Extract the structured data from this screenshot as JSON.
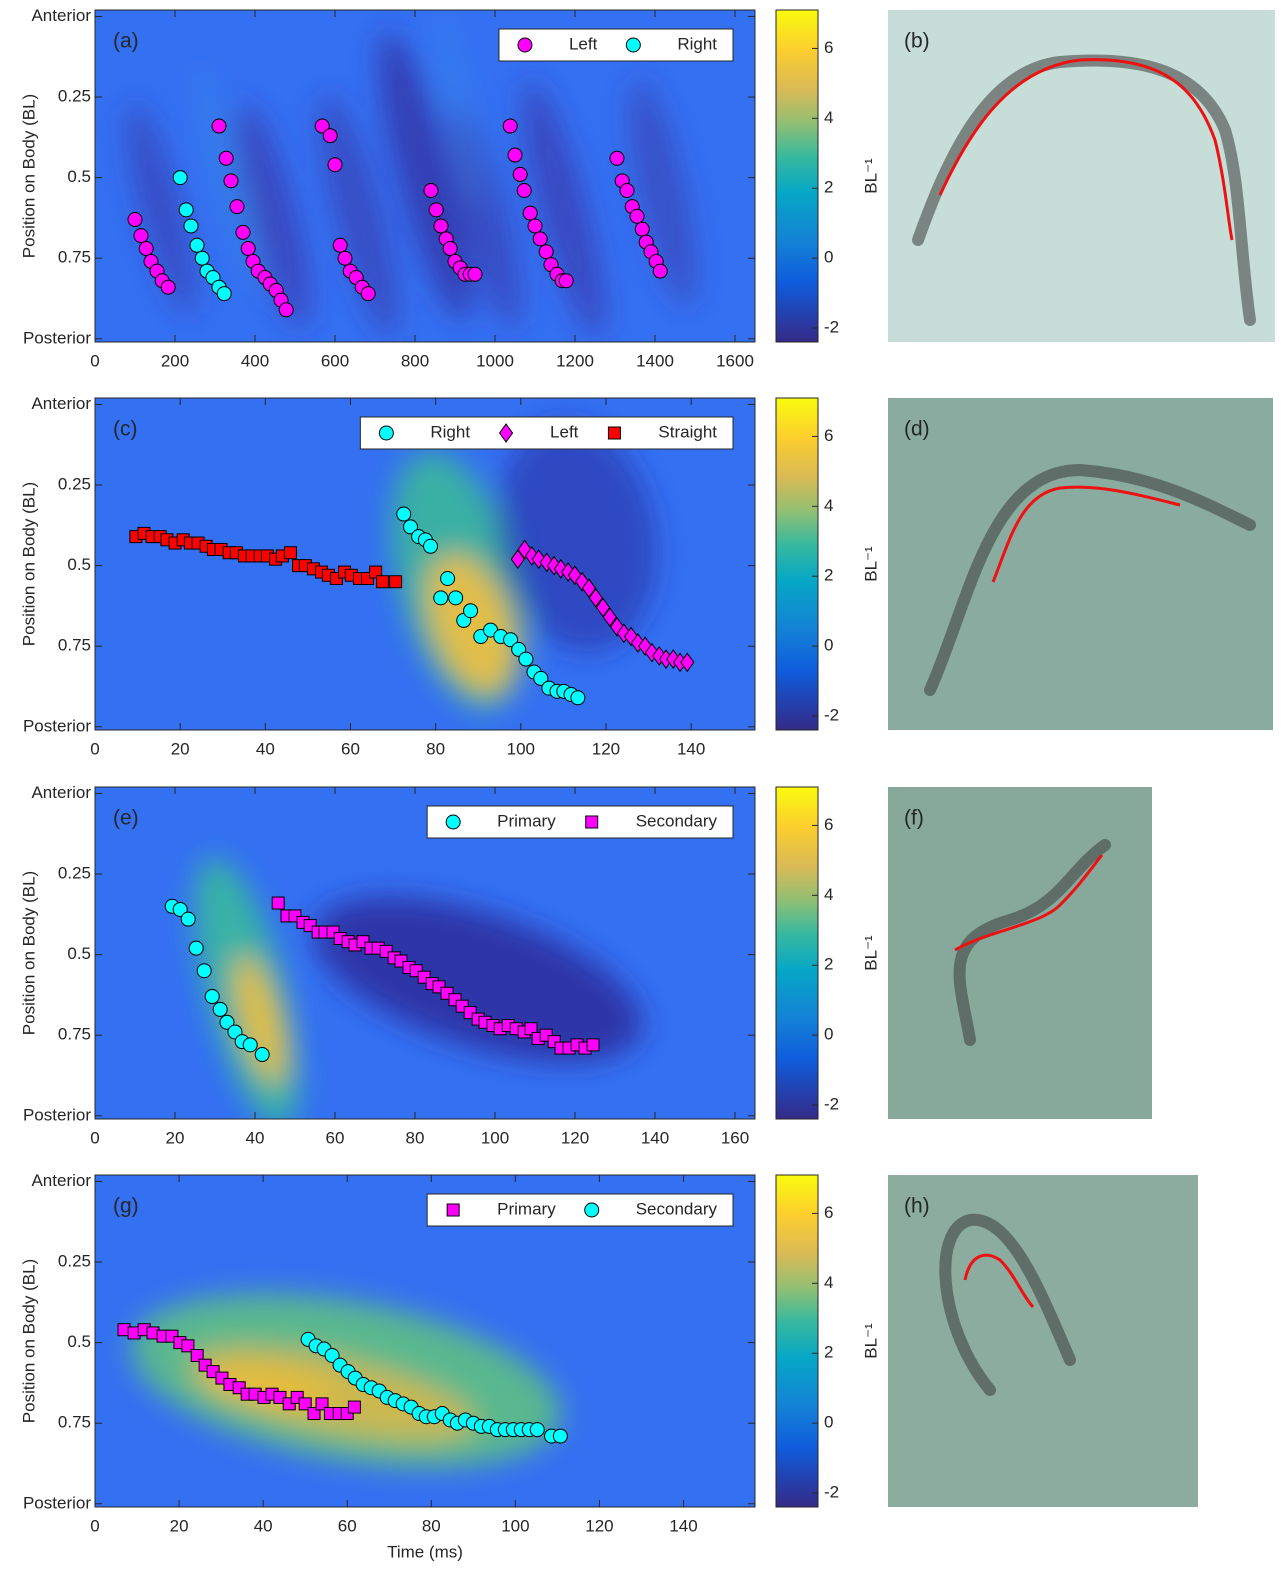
{
  "chart_data": [
    {
      "type": "scatter",
      "panel_label": "(a)",
      "ylabel": "Position on Body (BL)",
      "xlim": [
        0,
        1650
      ],
      "xticks": [
        0,
        200,
        400,
        600,
        800,
        1000,
        1200,
        1400,
        1600
      ],
      "ylim": [
        -0.02,
        1.01
      ],
      "y_reversed": true,
      "yticks": [
        {
          "value": 0,
          "label": "Anterior"
        },
        0.25,
        0.5,
        0.75,
        {
          "value": 1,
          "label": "Posterior"
        }
      ],
      "legend": "upper right",
      "colorbar": {
        "lim": [
          -2.4,
          7.1
        ],
        "ticks": [
          -2,
          0,
          2,
          4,
          6
        ],
        "label": "BL⁻¹"
      },
      "series": [
        {
          "name": "Left",
          "color": "#ff00ff",
          "marker": "circle",
          "x": [
            100,
            115,
            128,
            140,
            155,
            168,
            183,
            310,
            328,
            340,
            355,
            370,
            383,
            395,
            408,
            425,
            438,
            453,
            465,
            478,
            568,
            588,
            600,
            613,
            625,
            638,
            653,
            668,
            683,
            840,
            853,
            865,
            878,
            888,
            900,
            913,
            925,
            938,
            950,
            1038,
            1050,
            1063,
            1073,
            1088,
            1100,
            1113,
            1128,
            1140,
            1155,
            1168,
            1178,
            1305,
            1318,
            1330,
            1343,
            1355,
            1368,
            1378,
            1390,
            1403,
            1413
          ],
          "values": [
            0.63,
            0.68,
            0.72,
            0.76,
            0.79,
            0.82,
            0.84,
            0.34,
            0.44,
            0.51,
            0.59,
            0.67,
            0.72,
            0.76,
            0.79,
            0.81,
            0.83,
            0.85,
            0.88,
            0.91,
            0.34,
            0.37,
            0.46,
            0.71,
            0.75,
            0.79,
            0.81,
            0.84,
            0.86,
            0.54,
            0.6,
            0.65,
            0.69,
            0.72,
            0.76,
            0.78,
            0.8,
            0.8,
            0.8,
            0.34,
            0.43,
            0.49,
            0.54,
            0.61,
            0.65,
            0.69,
            0.73,
            0.77,
            0.8,
            0.82,
            0.82,
            0.44,
            0.51,
            0.54,
            0.59,
            0.62,
            0.66,
            0.7,
            0.73,
            0.76,
            0.79
          ]
        },
        {
          "name": "Right",
          "color": "#00ffff",
          "marker": "circle",
          "x": [
            213,
            228,
            240,
            255,
            268,
            280,
            295,
            310,
            323
          ],
          "values": [
            0.5,
            0.6,
            0.65,
            0.71,
            0.75,
            0.79,
            0.81,
            0.84,
            0.86
          ]
        }
      ]
    },
    {
      "type": "scatter",
      "panel_label": "(c)",
      "ylabel": "Position on Body (BL)",
      "xlim": [
        0,
        155
      ],
      "xticks": [
        0,
        20,
        40,
        60,
        80,
        100,
        120,
        140
      ],
      "ylim": [
        -0.02,
        1.01
      ],
      "y_reversed": true,
      "yticks": [
        {
          "value": 0,
          "label": "Anterior"
        },
        0.25,
        0.5,
        0.75,
        {
          "value": 1,
          "label": "Posterior"
        }
      ],
      "legend": "upper right",
      "colorbar": {
        "lim": [
          -2.4,
          7.1
        ],
        "ticks": [
          -2,
          0,
          2,
          4,
          6
        ],
        "label": "BL⁻¹"
      },
      "series": [
        {
          "name": "Right",
          "color": "#00ffff",
          "marker": "circle",
          "x": [
            72.5,
            74.1,
            76.0,
            77.6,
            78.8,
            81.2,
            82.8,
            84.7,
            86.6,
            88.2,
            90.6,
            92.9,
            95.3,
            97.6,
            99.5,
            101.2,
            103.1,
            104.7,
            106.6,
            108.5,
            110.1,
            111.8,
            113.4
          ],
          "values": [
            0.34,
            0.38,
            0.41,
            0.42,
            0.44,
            0.6,
            0.54,
            0.6,
            0.67,
            0.64,
            0.72,
            0.7,
            0.72,
            0.73,
            0.76,
            0.79,
            0.83,
            0.85,
            0.88,
            0.89,
            0.89,
            0.9,
            0.91
          ]
        },
        {
          "name": "Left",
          "color": "#ff00ff",
          "marker": "diamond",
          "x": [
            99.3,
            100.9,
            102.6,
            104.2,
            106.1,
            107.8,
            109.4,
            111.1,
            112.7,
            114.4,
            116.0,
            117.6,
            119.3,
            120.9,
            122.6,
            124.2,
            125.9,
            127.5,
            129.2,
            130.8,
            132.5,
            134.1,
            135.8,
            137.4,
            139.1
          ],
          "values": [
            0.48,
            0.45,
            0.47,
            0.48,
            0.49,
            0.5,
            0.51,
            0.52,
            0.53,
            0.55,
            0.57,
            0.6,
            0.63,
            0.66,
            0.69,
            0.71,
            0.72,
            0.74,
            0.75,
            0.77,
            0.78,
            0.79,
            0.79,
            0.8,
            0.8
          ]
        },
        {
          "name": "Straight",
          "color": "#ff0000",
          "marker": "square",
          "x": [
            9.6,
            11.5,
            13.4,
            15.3,
            16.9,
            18.8,
            20.7,
            22.4,
            24.2,
            26.1,
            27.8,
            29.6,
            31.5,
            33.2,
            35.1,
            36.9,
            38.8,
            40.5,
            42.4,
            44.0,
            45.9,
            47.8,
            49.4,
            51.3,
            53.2,
            54.8,
            56.7,
            58.6,
            60.2,
            62.1,
            64.0,
            65.9,
            67.5,
            70.6
          ],
          "values": [
            0.41,
            0.4,
            0.41,
            0.41,
            0.42,
            0.43,
            0.42,
            0.43,
            0.43,
            0.44,
            0.45,
            0.45,
            0.46,
            0.46,
            0.47,
            0.47,
            0.47,
            0.47,
            0.48,
            0.47,
            0.46,
            0.5,
            0.5,
            0.51,
            0.52,
            0.53,
            0.54,
            0.52,
            0.53,
            0.54,
            0.54,
            0.52,
            0.55,
            0.55
          ]
        }
      ]
    },
    {
      "type": "scatter",
      "panel_label": "(e)",
      "ylabel": "Position on Body (BL)",
      "xlim": [
        0,
        165
      ],
      "xticks": [
        0,
        20,
        40,
        60,
        80,
        100,
        120,
        140,
        160
      ],
      "ylim": [
        -0.02,
        1.01
      ],
      "y_reversed": true,
      "yticks": [
        {
          "value": 0,
          "label": "Anterior"
        },
        0.25,
        0.5,
        0.75,
        {
          "value": 1,
          "label": "Posterior"
        }
      ],
      "legend": "upper right",
      "colorbar": {
        "lim": [
          -2.4,
          7.1
        ],
        "ticks": [
          -2,
          0,
          2,
          4,
          6
        ],
        "label": "BL⁻¹"
      },
      "series": [
        {
          "name": "Primary",
          "color": "#00ffff",
          "marker": "circle",
          "x": [
            19.3,
            21.3,
            23.3,
            25.3,
            27.3,
            29.3,
            31.3,
            33,
            35,
            36.8,
            38.8,
            41.8
          ],
          "values": [
            0.35,
            0.36,
            0.39,
            0.48,
            0.55,
            0.63,
            0.67,
            0.71,
            0.74,
            0.77,
            0.78,
            0.81
          ]
        },
        {
          "name": "Secondary",
          "color": "#ff00ff",
          "marker": "square",
          "x": [
            45.8,
            48,
            50,
            52,
            53.8,
            55.8,
            57.5,
            59.5,
            61.3,
            63.3,
            65,
            67,
            69,
            70.8,
            72.8,
            74.8,
            76.5,
            78.5,
            80.3,
            82.3,
            84.3,
            86,
            88,
            90,
            91.8,
            93.8,
            95.8,
            97.5,
            99.5,
            101.3,
            103.3,
            105.3,
            107.3,
            109,
            110.8,
            112.8,
            114.8,
            116.5,
            118.5,
            120.5,
            122.5,
            124.5
          ],
          "values": [
            0.34,
            0.38,
            0.38,
            0.4,
            0.41,
            0.43,
            0.43,
            0.43,
            0.45,
            0.46,
            0.47,
            0.46,
            0.48,
            0.48,
            0.49,
            0.51,
            0.52,
            0.54,
            0.55,
            0.57,
            0.59,
            0.6,
            0.62,
            0.64,
            0.66,
            0.68,
            0.7,
            0.71,
            0.72,
            0.73,
            0.72,
            0.73,
            0.74,
            0.73,
            0.76,
            0.75,
            0.77,
            0.79,
            0.79,
            0.78,
            0.79,
            0.78
          ]
        }
      ]
    },
    {
      "type": "scatter",
      "panel_label": "(g)",
      "ylabel": "Position on Body (BL)",
      "xlabel": "Time (ms)",
      "xlim": [
        0,
        157
      ],
      "xticks": [
        0,
        20,
        40,
        60,
        80,
        100,
        120,
        140
      ],
      "ylim": [
        -0.02,
        1.01
      ],
      "y_reversed": true,
      "yticks": [
        {
          "value": 0,
          "label": "Anterior"
        },
        0.25,
        0.5,
        0.75,
        {
          "value": 1,
          "label": "Posterior"
        }
      ],
      "legend": "upper right",
      "colorbar": {
        "lim": [
          -2.4,
          7.1
        ],
        "ticks": [
          -2,
          0,
          2,
          4,
          6
        ],
        "label": "BL⁻¹"
      },
      "series": [
        {
          "name": "Primary",
          "color": "#ff00ff",
          "marker": "square",
          "x": [
            6.9,
            9.3,
            11.7,
            13.8,
            16.2,
            18.3,
            20.2,
            22.1,
            24.3,
            26.2,
            28.1,
            30.2,
            32.1,
            34.3,
            36.2,
            38.1,
            40.2,
            42.1,
            44.0,
            46.2,
            48.1,
            50.0,
            52.1,
            54.0,
            56.0,
            58.1,
            60.0,
            61.7
          ],
          "values": [
            0.46,
            0.47,
            0.46,
            0.47,
            0.48,
            0.48,
            0.5,
            0.51,
            0.54,
            0.57,
            0.59,
            0.61,
            0.63,
            0.64,
            0.66,
            0.66,
            0.67,
            0.66,
            0.67,
            0.69,
            0.67,
            0.69,
            0.72,
            0.69,
            0.72,
            0.72,
            0.72,
            0.7
          ]
        },
        {
          "name": "Secondary",
          "color": "#00ffff",
          "marker": "circle",
          "x": [
            50.7,
            52.6,
            54.5,
            56.4,
            58.3,
            60.2,
            61.9,
            63.8,
            65.7,
            67.6,
            69.5,
            71.4,
            73.3,
            75.2,
            77.1,
            78.8,
            80.7,
            82.6,
            84.5,
            86.2,
            88.1,
            90.0,
            91.9,
            93.8,
            95.7,
            97.6,
            99.5,
            101.4,
            103.3,
            105.2,
            108.6,
            110.7
          ],
          "values": [
            0.49,
            0.51,
            0.52,
            0.54,
            0.57,
            0.59,
            0.61,
            0.63,
            0.64,
            0.65,
            0.67,
            0.68,
            0.69,
            0.7,
            0.72,
            0.73,
            0.73,
            0.72,
            0.74,
            0.75,
            0.74,
            0.75,
            0.76,
            0.76,
            0.77,
            0.77,
            0.77,
            0.77,
            0.77,
            0.77,
            0.79,
            0.79
          ]
        }
      ]
    }
  ],
  "photos": [
    {
      "label": "(b)"
    },
    {
      "label": "(d)"
    },
    {
      "label": "(f)"
    },
    {
      "label": "(h)"
    }
  ]
}
